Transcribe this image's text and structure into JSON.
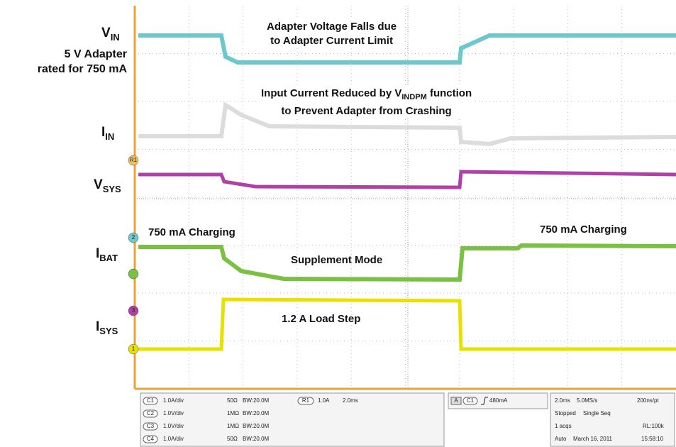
{
  "labels": [
    {
      "main": "V",
      "sub": "IN"
    },
    {
      "main": "I",
      "sub": "IN"
    },
    {
      "main": "V",
      "sub": "SYS"
    },
    {
      "main": "I",
      "sub": "BAT"
    },
    {
      "main": "I",
      "sub": "SYS"
    }
  ],
  "adapter_note": [
    "5 V Adapter",
    "rated for 750 mA"
  ],
  "annotations": {
    "adapter_falls": [
      "Adapter Voltage Falls due",
      "to Adapter Current Limit"
    ],
    "input_reduced": {
      "pre": "Input Current Reduced by V",
      "sub": "INDPM",
      "post": "function",
      "line2": "to Prevent Adapter from Crashing"
    },
    "charging_left": "750 mA Charging",
    "charging_right": "750 mA Charging",
    "supplement": "Supplement Mode",
    "load_step": "1.2 A Load Step"
  },
  "markers": [
    "R1",
    "2",
    "3",
    "1"
  ],
  "status": {
    "channels": [
      [
        "C1",
        "1.0A/div",
        "50Ω",
        "BW:20.0M"
      ],
      [
        "C2",
        "1.0V/div",
        "1MΩ",
        "BW:20.0M"
      ],
      [
        "C3",
        "1.0V/div",
        "1MΩ",
        "BW:20.0M"
      ],
      [
        "C4",
        "1.0A/div",
        "50Ω",
        "BW:20.0M"
      ]
    ],
    "ref": [
      "R1",
      "1.0A",
      "2.0ms"
    ],
    "trigger": [
      "A",
      "C1",
      "480mA"
    ],
    "timebase": [
      [
        "2.0ms",
        "5.0MS/s",
        "200ns/pt"
      ],
      [
        "Stopped",
        "Single Seq"
      ],
      [
        "1 acqs",
        "RL:100k"
      ],
      [
        "Auto",
        "March 16, 2011",
        "15:58:10"
      ]
    ]
  }
}
